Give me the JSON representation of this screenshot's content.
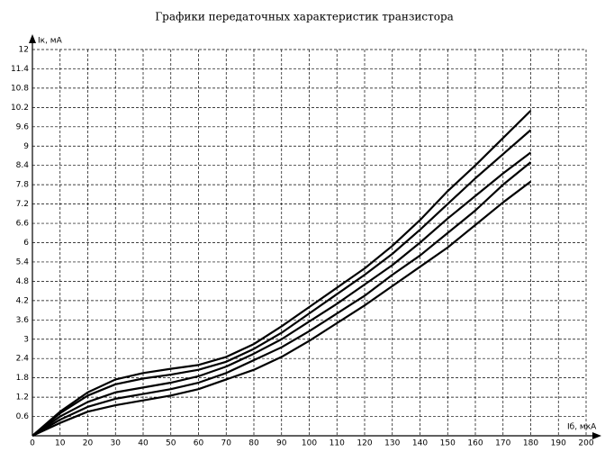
{
  "chart_data": {
    "type": "line",
    "title": "Графики передаточных характеристик транзистора",
    "x_label": "Iб, мкА",
    "y_label": "Iк, мА",
    "x": [
      0,
      10,
      20,
      30,
      40,
      50,
      60,
      70,
      80,
      90,
      100,
      110,
      120,
      130,
      140,
      150,
      160,
      170,
      180
    ],
    "series": [
      {
        "color": "#000000",
        "values": [
          0,
          0.75,
          1.35,
          1.75,
          1.95,
          2.08,
          2.2,
          2.45,
          2.85,
          3.4,
          4.0,
          4.6,
          5.2,
          5.9,
          6.7,
          7.6,
          8.4,
          9.25,
          10.1
        ]
      },
      {
        "color": "#000000",
        "values": [
          0,
          0.7,
          1.25,
          1.6,
          1.78,
          1.9,
          2.05,
          2.3,
          2.7,
          3.2,
          3.8,
          4.4,
          5.0,
          5.65,
          6.4,
          7.2,
          8.0,
          8.75,
          9.5
        ]
      },
      {
        "color": "#000000",
        "values": [
          0,
          0.6,
          1.05,
          1.35,
          1.5,
          1.65,
          1.85,
          2.15,
          2.55,
          3.0,
          3.55,
          4.1,
          4.7,
          5.3,
          6.0,
          6.75,
          7.45,
          8.15,
          8.8
        ]
      },
      {
        "color": "#000000",
        "values": [
          0,
          0.5,
          0.9,
          1.15,
          1.3,
          1.45,
          1.65,
          1.95,
          2.35,
          2.75,
          3.25,
          3.8,
          4.35,
          5.0,
          5.6,
          6.3,
          7.0,
          7.8,
          8.5
        ]
      },
      {
        "color": "#000000",
        "values": [
          0,
          0.4,
          0.75,
          0.95,
          1.1,
          1.25,
          1.45,
          1.75,
          2.05,
          2.45,
          2.95,
          3.5,
          4.05,
          4.65,
          5.25,
          5.85,
          6.55,
          7.25,
          7.9
        ]
      }
    ],
    "xlim": [
      0,
      200
    ],
    "ylim": [
      0,
      12
    ],
    "xticks": [
      0,
      10,
      20,
      30,
      40,
      50,
      60,
      70,
      80,
      90,
      100,
      110,
      120,
      130,
      140,
      150,
      160,
      170,
      180,
      190,
      200
    ],
    "yticks": [
      0.6,
      1.2,
      1.8,
      2.4,
      3,
      3.6,
      4.2,
      4.8,
      5.4,
      6,
      6.6,
      7.2,
      7.8,
      8.4,
      9,
      9.6,
      10.2,
      10.8,
      11.4,
      12
    ],
    "grid": true
  }
}
